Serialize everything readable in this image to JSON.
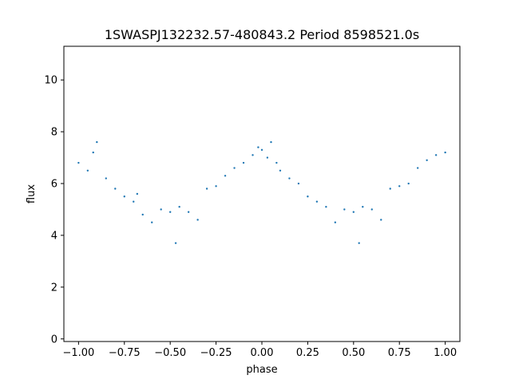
{
  "chart_data": {
    "type": "scatter",
    "title": "1SWASPJ132232.57-480843.2 Period 8598521.0s",
    "xlabel": "phase",
    "ylabel": "flux",
    "xlim": [
      -1.08,
      1.08
    ],
    "ylim": [
      -0.1,
      11.3
    ],
    "xticks": [
      -1.0,
      -0.75,
      -0.5,
      -0.25,
      0.0,
      0.25,
      0.5,
      0.75,
      1.0
    ],
    "xtick_labels": [
      "−1.00",
      "−0.75",
      "−0.50",
      "−0.25",
      "0.00",
      "0.25",
      "0.50",
      "0.75",
      "1.00"
    ],
    "yticks": [
      0,
      2,
      4,
      6,
      8,
      10
    ],
    "ytick_labels": [
      "0",
      "2",
      "4",
      "6",
      "8",
      "10"
    ],
    "grid": false,
    "marker_color": "#1f77b4",
    "series": [
      {
        "name": "",
        "x": [
          -1.0,
          -0.95,
          -0.92,
          -0.9,
          -0.85,
          -0.8,
          -0.75,
          -0.7,
          -0.68,
          -0.65,
          -0.6,
          -0.55,
          -0.5,
          -0.47,
          -0.45,
          -0.4,
          -0.35,
          -0.3,
          -0.25,
          -0.2,
          -0.15,
          -0.1,
          -0.05,
          -0.02,
          0.0,
          0.03,
          0.05,
          0.08,
          0.1,
          0.15,
          0.2,
          0.25,
          0.3,
          0.35,
          0.4,
          0.45,
          0.5,
          0.53,
          0.55,
          0.6,
          0.65,
          0.7,
          0.75,
          0.8,
          0.85,
          0.9,
          0.95,
          1.0
        ],
        "y": [
          6.8,
          6.5,
          7.2,
          7.6,
          6.2,
          5.8,
          5.5,
          5.3,
          5.6,
          4.8,
          4.5,
          5.0,
          4.9,
          3.7,
          5.1,
          4.9,
          4.6,
          5.8,
          5.9,
          6.3,
          6.6,
          6.8,
          7.1,
          7.4,
          7.3,
          7.0,
          7.6,
          6.8,
          6.5,
          6.2,
          6.0,
          5.5,
          5.3,
          5.1,
          4.5,
          5.0,
          4.9,
          3.7,
          5.1,
          5.0,
          4.6,
          5.8,
          5.9,
          6.0,
          6.6,
          6.9,
          7.1,
          7.2
        ]
      }
    ]
  }
}
